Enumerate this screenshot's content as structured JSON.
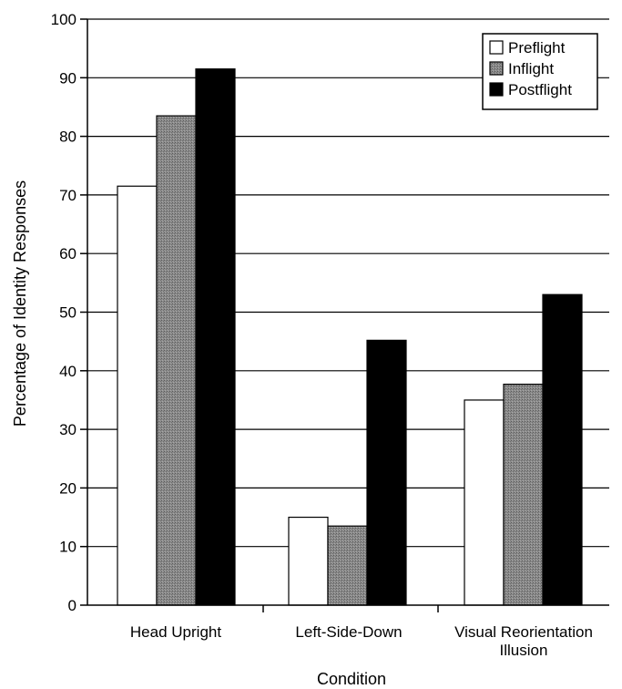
{
  "chart_data": {
    "type": "bar",
    "categories": [
      [
        "Head Upright"
      ],
      [
        "Left-Side-Down"
      ],
      [
        "Visual Reorientation",
        "Illusion"
      ]
    ],
    "series": [
      {
        "name": "Preflight",
        "values": [
          71.5,
          15.0,
          35.0
        ],
        "color": "#ffffff"
      },
      {
        "name": "Inflight",
        "values": [
          83.5,
          13.5,
          37.7
        ],
        "color": "#8a8a8a"
      },
      {
        "name": "Postflight",
        "values": [
          91.5,
          45.2,
          53.0
        ],
        "color": "#000000"
      }
    ],
    "xlabel": "Condition",
    "ylabel": "Percentage of Identity Responses",
    "ylim": [
      0,
      100
    ],
    "yticks": [
      0,
      10,
      20,
      30,
      40,
      50,
      60,
      70,
      80,
      90,
      100
    ],
    "grid": true,
    "legend": "top-right"
  }
}
